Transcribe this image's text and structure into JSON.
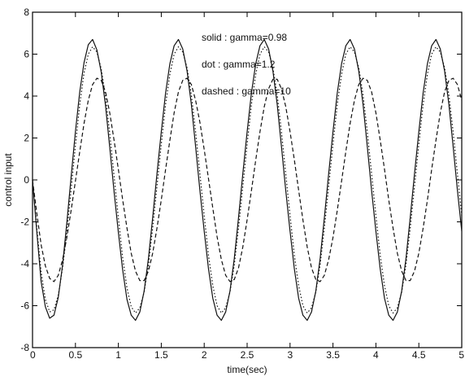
{
  "chart_data": {
    "type": "line",
    "title": "",
    "xlabel": "time(sec)",
    "ylabel": "control input",
    "xlim": [
      0,
      5
    ],
    "ylim": [
      -8,
      8
    ],
    "xticks": [
      0,
      0.5,
      1,
      1.5,
      2,
      2.5,
      3,
      3.5,
      4,
      4.5,
      5
    ],
    "xtick_labels": [
      "0",
      "0.5",
      "1",
      "1.5",
      "2",
      "2.5",
      "3",
      "3.5",
      "4",
      "4.5",
      "5"
    ],
    "yticks": [
      -8,
      -6,
      -4,
      -2,
      0,
      2,
      4,
      6,
      8
    ],
    "ytick_labels": [
      "-8",
      "-6",
      "-4",
      "-2",
      "0",
      "2",
      "4",
      "6",
      "8"
    ],
    "grid": false,
    "annotations": [
      "solid : gamma=0.98",
      "dot : gamma=1.2",
      "dashed : gamma=10"
    ],
    "series": [
      {
        "style": "solid",
        "x": [
          0,
          0.05,
          0.1,
          0.15,
          0.2,
          0.25,
          0.3,
          0.35,
          0.4,
          0.45,
          0.5,
          0.55,
          0.6,
          0.65,
          0.7,
          0.75,
          0.8,
          0.85,
          0.9,
          0.95,
          1.0,
          1.05,
          1.1,
          1.15,
          1.2,
          1.25,
          1.3,
          1.35,
          1.4,
          1.45,
          1.5,
          1.55,
          1.6,
          1.65,
          1.7,
          1.75,
          1.8,
          1.85,
          1.9,
          1.95,
          2.0,
          2.05,
          2.1,
          2.15,
          2.2,
          2.25,
          2.3,
          2.35,
          2.4,
          2.45,
          2.5,
          2.55,
          2.6,
          2.65,
          2.7,
          2.75,
          2.8,
          2.85,
          2.9,
          2.95,
          3.0,
          3.05,
          3.1,
          3.15,
          3.2,
          3.25,
          3.3,
          3.35,
          3.4,
          3.45,
          3.5,
          3.55,
          3.6,
          3.65,
          3.7,
          3.75,
          3.8,
          3.85,
          3.9,
          3.95,
          4.0,
          4.05,
          4.1,
          4.15,
          4.2,
          4.25,
          4.3,
          4.35,
          4.4,
          4.45,
          4.5,
          4.55,
          4.6,
          4.65,
          4.7,
          4.75,
          4.8,
          4.85,
          4.9,
          4.95,
          5.0
        ],
        "y": [
          0,
          -2.48,
          -4.85,
          -6.05,
          -6.6,
          -6.45,
          -5.6,
          -4.05,
          -2.05,
          0.15,
          2.31,
          4.2,
          5.6,
          6.45,
          6.7,
          6.2,
          5.15,
          3.55,
          1.55,
          -0.55,
          -2.5,
          -4.3,
          -5.7,
          -6.45,
          -6.7,
          -6.3,
          -5.3,
          -3.75,
          -1.8,
          0.3,
          2.3,
          4.15,
          5.55,
          6.4,
          6.7,
          6.25,
          5.2,
          3.6,
          1.6,
          -0.5,
          -2.45,
          -4.25,
          -5.65,
          -6.45,
          -6.7,
          -6.3,
          -5.3,
          -3.75,
          -1.8,
          0.3,
          2.3,
          4.15,
          5.55,
          6.4,
          6.7,
          6.25,
          5.2,
          3.6,
          1.6,
          -0.5,
          -2.45,
          -4.25,
          -5.65,
          -6.45,
          -6.7,
          -6.3,
          -5.3,
          -3.75,
          -1.8,
          0.3,
          2.3,
          4.15,
          5.55,
          6.4,
          6.7,
          6.25,
          5.2,
          3.6,
          1.6,
          -0.5,
          -2.45,
          -4.25,
          -5.65,
          -6.45,
          -6.7,
          -6.3,
          -5.3,
          -3.75,
          -1.8,
          0.3,
          2.3,
          4.15,
          5.55,
          6.4,
          6.7,
          6.25,
          5.2,
          3.6,
          1.6,
          -0.5,
          -2.45
        ]
      },
      {
        "style": "dotted",
        "x": [
          0,
          0.05,
          0.1,
          0.15,
          0.2,
          0.25,
          0.3,
          0.35,
          0.4,
          0.45,
          0.5,
          0.55,
          0.6,
          0.65,
          0.7,
          0.75,
          0.8,
          0.85,
          0.9,
          0.95,
          1.0,
          1.05,
          1.1,
          1.15,
          1.2,
          1.25,
          1.3,
          1.35,
          1.4,
          1.45,
          1.5,
          1.55,
          1.6,
          1.65,
          1.7,
          1.75,
          1.8,
          1.85,
          1.9,
          1.95,
          2.0,
          2.05,
          2.1,
          2.15,
          2.2,
          2.25,
          2.3,
          2.35,
          2.4,
          2.45,
          2.5,
          2.55,
          2.6,
          2.65,
          2.7,
          2.75,
          2.8,
          2.85,
          2.9,
          2.95,
          3.0,
          3.05,
          3.1,
          3.15,
          3.2,
          3.25,
          3.3,
          3.35,
          3.4,
          3.45,
          3.5,
          3.55,
          3.6,
          3.65,
          3.7,
          3.75,
          3.8,
          3.85,
          3.9,
          3.95,
          4.0,
          4.05,
          4.1,
          4.15,
          4.2,
          4.25,
          4.3,
          4.35,
          4.4,
          4.45,
          4.5,
          4.55,
          4.6,
          4.65,
          4.7,
          4.75,
          4.8,
          4.85,
          4.9,
          4.95,
          5.0
        ],
        "y": [
          0,
          -2.3,
          -4.4,
          -5.7,
          -6.3,
          -6.2,
          -5.5,
          -4.2,
          -2.5,
          -0.45,
          1.65,
          3.6,
          5.1,
          6.0,
          6.35,
          6.1,
          5.3,
          4.0,
          2.2,
          0.2,
          -1.8,
          -3.7,
          -5.15,
          -6.05,
          -6.35,
          -6.1,
          -5.35,
          -4.05,
          -2.3,
          -0.3,
          1.7,
          3.6,
          5.05,
          6.0,
          6.35,
          6.1,
          5.35,
          4.05,
          2.3,
          0.3,
          -1.7,
          -3.6,
          -5.05,
          -6.0,
          -6.35,
          -6.1,
          -5.35,
          -4.05,
          -2.3,
          -0.3,
          1.7,
          3.6,
          5.05,
          6.0,
          6.35,
          6.1,
          5.35,
          4.05,
          2.3,
          0.3,
          -1.7,
          -3.6,
          -5.05,
          -6.0,
          -6.35,
          -6.1,
          -5.35,
          -4.05,
          -2.3,
          -0.3,
          1.7,
          3.6,
          5.05,
          6.0,
          6.35,
          6.1,
          5.35,
          4.05,
          2.3,
          0.3,
          -1.7,
          -3.6,
          -5.05,
          -6.0,
          -6.35,
          -6.1,
          -5.35,
          -4.05,
          -2.3,
          -0.3,
          1.7,
          3.6,
          5.05,
          6.0,
          6.35,
          6.1,
          5.35,
          4.05,
          2.3,
          0.3,
          -1.7
        ]
      },
      {
        "style": "dashed",
        "x": [
          0,
          0.05,
          0.1,
          0.15,
          0.2,
          0.25,
          0.3,
          0.35,
          0.4,
          0.45,
          0.5,
          0.55,
          0.6,
          0.65,
          0.7,
          0.75,
          0.8,
          0.85,
          0.9,
          0.95,
          1.0,
          1.05,
          1.1,
          1.15,
          1.2,
          1.25,
          1.3,
          1.35,
          1.4,
          1.45,
          1.5,
          1.55,
          1.6,
          1.65,
          1.7,
          1.75,
          1.8,
          1.85,
          1.9,
          1.95,
          2.0,
          2.05,
          2.1,
          2.15,
          2.2,
          2.25,
          2.3,
          2.35,
          2.4,
          2.45,
          2.5,
          2.55,
          2.6,
          2.65,
          2.7,
          2.75,
          2.8,
          2.85,
          2.9,
          2.95,
          3.0,
          3.05,
          3.1,
          3.15,
          3.2,
          3.25,
          3.3,
          3.35,
          3.4,
          3.45,
          3.5,
          3.55,
          3.6,
          3.65,
          3.7,
          3.75,
          3.8,
          3.85,
          3.9,
          3.95,
          4.0,
          4.05,
          4.1,
          4.15,
          4.2,
          4.25,
          4.3,
          4.35,
          4.4,
          4.45,
          4.5,
          4.55,
          4.6,
          4.65,
          4.7,
          4.75,
          4.8,
          4.85,
          4.9,
          4.95,
          5.0
        ],
        "y": [
          0,
          -1.6,
          -3.1,
          -4.1,
          -4.7,
          -4.85,
          -4.55,
          -3.8,
          -2.75,
          -1.45,
          -0.05,
          1.35,
          2.7,
          3.8,
          4.55,
          4.85,
          4.75,
          4.2,
          3.2,
          1.9,
          0.5,
          -0.95,
          -2.3,
          -3.5,
          -4.35,
          -4.8,
          -4.8,
          -4.35,
          -3.5,
          -2.3,
          -0.95,
          0.5,
          1.9,
          3.2,
          4.2,
          4.75,
          4.85,
          4.55,
          3.8,
          2.75,
          1.45,
          0.05,
          -1.35,
          -2.7,
          -3.8,
          -4.55,
          -4.85,
          -4.75,
          -4.2,
          -3.2,
          -1.9,
          -0.5,
          0.95,
          2.3,
          3.5,
          4.35,
          4.8,
          4.8,
          4.35,
          3.5,
          2.3,
          0.95,
          -0.5,
          -1.9,
          -3.2,
          -4.2,
          -4.75,
          -4.85,
          -4.55,
          -3.8,
          -2.75,
          -1.45,
          -0.05,
          1.35,
          2.7,
          3.8,
          4.55,
          4.85,
          4.75,
          4.2,
          3.2,
          1.9,
          0.5,
          -0.95,
          -2.3,
          -3.5,
          -4.35,
          -4.8,
          -4.8,
          -4.35,
          -3.5,
          -2.3,
          -0.95,
          0.5,
          1.9,
          3.2,
          4.2,
          4.75,
          4.85,
          4.55,
          3.8
        ]
      }
    ]
  }
}
